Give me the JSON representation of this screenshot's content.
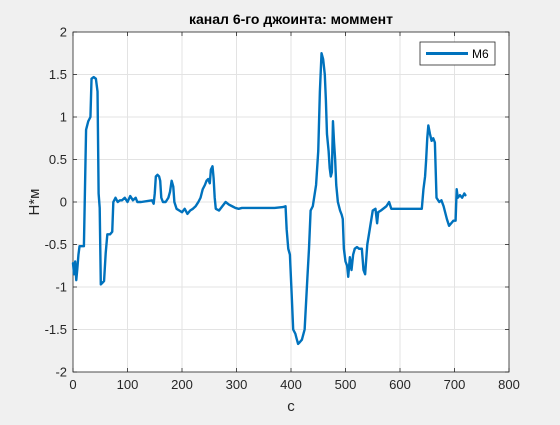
{
  "chart_data": {
    "type": "line",
    "title": "канал 6-го джоинта: моммент",
    "xlabel": "с",
    "ylabel": "Н*м",
    "xlim": [
      0,
      800
    ],
    "ylim": [
      -2,
      2
    ],
    "xticks": [
      0,
      100,
      200,
      300,
      400,
      500,
      600,
      700,
      800
    ],
    "yticks": [
      -2,
      -1.5,
      -1,
      -0.5,
      0,
      0.5,
      1,
      1.5,
      2
    ],
    "xtick_labels": [
      "0",
      "100",
      "200",
      "300",
      "400",
      "500",
      "600",
      "700",
      "800"
    ],
    "ytick_labels": [
      "-2",
      "-1.5",
      "-1",
      "-0.5",
      "0",
      "0.5",
      "1",
      "1.5",
      "2"
    ],
    "grid": true,
    "legend_position": "top-right",
    "series": [
      {
        "name": "M6",
        "color": "#0072bd",
        "points": [
          [
            0,
            -0.72
          ],
          [
            2,
            -0.85
          ],
          [
            4,
            -0.7
          ],
          [
            6,
            -0.92
          ],
          [
            8,
            -0.78
          ],
          [
            10,
            -0.62
          ],
          [
            12,
            -0.52
          ],
          [
            20,
            -0.52
          ],
          [
            24,
            0.85
          ],
          [
            28,
            0.95
          ],
          [
            32,
            1.0
          ],
          [
            34,
            1.45
          ],
          [
            38,
            1.47
          ],
          [
            42,
            1.45
          ],
          [
            45,
            1.3
          ],
          [
            47,
            0.1
          ],
          [
            49,
            -0.07
          ],
          [
            51,
            -0.97
          ],
          [
            54,
            -0.95
          ],
          [
            57,
            -0.93
          ],
          [
            60,
            -0.6
          ],
          [
            63,
            -0.38
          ],
          [
            68,
            -0.38
          ],
          [
            72,
            -0.35
          ],
          [
            74,
            0.0
          ],
          [
            78,
            0.05
          ],
          [
            82,
            0.0
          ],
          [
            86,
            0.02
          ],
          [
            90,
            0.02
          ],
          [
            95,
            0.05
          ],
          [
            100,
            0.0
          ],
          [
            105,
            0.07
          ],
          [
            110,
            0.02
          ],
          [
            115,
            0.05
          ],
          [
            118,
            0.0
          ],
          [
            125,
            0.0
          ],
          [
            135,
            0.01
          ],
          [
            145,
            0.02
          ],
          [
            148,
            -0.02
          ],
          [
            150,
            0.1
          ],
          [
            152,
            0.3
          ],
          [
            155,
            0.32
          ],
          [
            158,
            0.3
          ],
          [
            160,
            0.25
          ],
          [
            162,
            0.05
          ],
          [
            165,
            0.0
          ],
          [
            170,
            0.0
          ],
          [
            175,
            0.05
          ],
          [
            178,
            0.12
          ],
          [
            181,
            0.25
          ],
          [
            184,
            0.18
          ],
          [
            186,
            0.0
          ],
          [
            190,
            -0.08
          ],
          [
            195,
            -0.1
          ],
          [
            200,
            -0.12
          ],
          [
            205,
            -0.08
          ],
          [
            210,
            -0.14
          ],
          [
            215,
            -0.1
          ],
          [
            220,
            -0.08
          ],
          [
            225,
            -0.05
          ],
          [
            228,
            -0.02
          ],
          [
            230,
            0.0
          ],
          [
            234,
            0.05
          ],
          [
            238,
            0.15
          ],
          [
            242,
            0.2
          ],
          [
            245,
            0.25
          ],
          [
            248,
            0.27
          ],
          [
            251,
            0.22
          ],
          [
            253,
            0.38
          ],
          [
            256,
            0.42
          ],
          [
            258,
            0.28
          ],
          [
            260,
            0.05
          ],
          [
            262,
            -0.08
          ],
          [
            268,
            -0.1
          ],
          [
            274,
            -0.05
          ],
          [
            280,
            0.0
          ],
          [
            286,
            -0.03
          ],
          [
            292,
            -0.05
          ],
          [
            298,
            -0.07
          ],
          [
            304,
            -0.08
          ],
          [
            310,
            -0.07
          ],
          [
            330,
            -0.07
          ],
          [
            350,
            -0.07
          ],
          [
            370,
            -0.07
          ],
          [
            385,
            -0.06
          ],
          [
            390,
            -0.05
          ],
          [
            392,
            -0.32
          ],
          [
            395,
            -0.55
          ],
          [
            398,
            -0.62
          ],
          [
            402,
            -1.2
          ],
          [
            404,
            -1.5
          ],
          [
            408,
            -1.55
          ],
          [
            410,
            -1.6
          ],
          [
            413,
            -1.67
          ],
          [
            416,
            -1.65
          ],
          [
            420,
            -1.62
          ],
          [
            425,
            -1.5
          ],
          [
            430,
            -0.9
          ],
          [
            433,
            -0.55
          ],
          [
            436,
            -0.1
          ],
          [
            440,
            -0.05
          ],
          [
            446,
            0.2
          ],
          [
            450,
            0.6
          ],
          [
            453,
            1.3
          ],
          [
            456,
            1.75
          ],
          [
            459,
            1.68
          ],
          [
            462,
            1.5
          ],
          [
            464,
            1.2
          ],
          [
            466,
            0.8
          ],
          [
            469,
            0.6
          ],
          [
            471,
            0.4
          ],
          [
            473,
            0.3
          ],
          [
            475,
            0.35
          ],
          [
            477,
            0.95
          ],
          [
            479,
            0.7
          ],
          [
            481,
            0.5
          ],
          [
            483,
            0.2
          ],
          [
            486,
            0.0
          ],
          [
            490,
            -0.1
          ],
          [
            493,
            -0.15
          ],
          [
            495,
            -0.2
          ],
          [
            497,
            -0.55
          ],
          [
            500,
            -0.7
          ],
          [
            503,
            -0.75
          ],
          [
            505,
            -0.88
          ],
          [
            508,
            -0.65
          ],
          [
            511,
            -0.8
          ],
          [
            514,
            -0.62
          ],
          [
            517,
            -0.55
          ],
          [
            521,
            -0.53
          ],
          [
            525,
            -0.55
          ],
          [
            530,
            -0.55
          ],
          [
            533,
            -0.8
          ],
          [
            536,
            -0.85
          ],
          [
            540,
            -0.5
          ],
          [
            545,
            -0.3
          ],
          [
            550,
            -0.1
          ],
          [
            555,
            -0.08
          ],
          [
            558,
            -0.25
          ],
          [
            560,
            -0.12
          ],
          [
            565,
            -0.1
          ],
          [
            575,
            -0.05
          ],
          [
            580,
            0.0
          ],
          [
            584,
            -0.08
          ],
          [
            600,
            -0.08
          ],
          [
            620,
            -0.08
          ],
          [
            640,
            -0.08
          ],
          [
            643,
            0.15
          ],
          [
            646,
            0.3
          ],
          [
            648,
            0.5
          ],
          [
            650,
            0.75
          ],
          [
            652,
            0.9
          ],
          [
            655,
            0.8
          ],
          [
            658,
            0.72
          ],
          [
            661,
            0.75
          ],
          [
            664,
            0.7
          ],
          [
            667,
            0.05
          ],
          [
            672,
            0.0
          ],
          [
            676,
            0.02
          ],
          [
            680,
            -0.05
          ],
          [
            686,
            -0.2
          ],
          [
            690,
            -0.28
          ],
          [
            694,
            -0.25
          ],
          [
            698,
            -0.22
          ],
          [
            702,
            -0.22
          ],
          [
            704,
            0.15
          ],
          [
            706,
            0.05
          ],
          [
            710,
            0.08
          ],
          [
            714,
            0.05
          ],
          [
            718,
            0.1
          ],
          [
            720,
            0.08
          ]
        ]
      }
    ]
  }
}
